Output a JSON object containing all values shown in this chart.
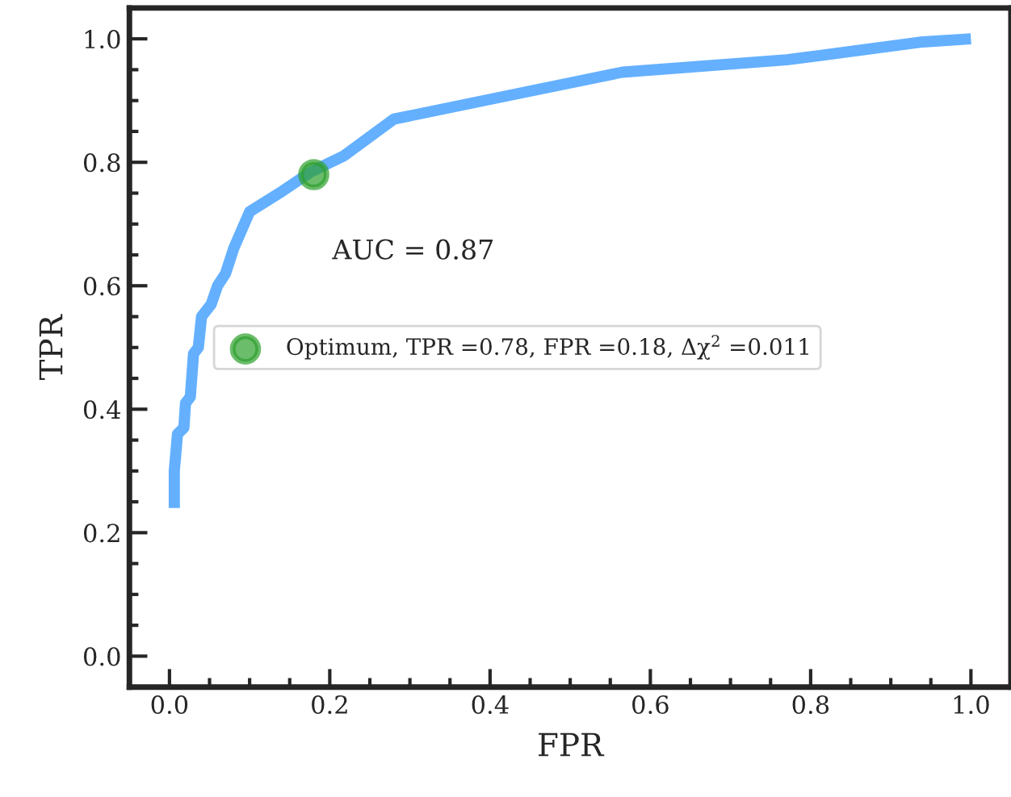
{
  "chart_data": {
    "type": "line",
    "xlabel": "FPR",
    "ylabel": "TPR",
    "xlim": [
      -0.05,
      1.05
    ],
    "ylim": [
      -0.05,
      1.05
    ],
    "xticks": [
      {
        "value": 0,
        "label": "0.0"
      },
      0.2,
      0.4,
      0.6,
      0.8,
      {
        "value": 1,
        "label": "1.0"
      }
    ],
    "yticks": [
      {
        "value": 0,
        "label": "0.0"
      },
      0.2,
      0.4,
      0.6,
      0.8,
      {
        "value": 1,
        "label": "1.0"
      }
    ],
    "grid": false,
    "legend": "center",
    "annotations": [
      "AUC = 0.87"
    ],
    "series": [
      {
        "color": "#64b0ff",
        "marker": "none",
        "line_style": "solid",
        "x": [
          0.006,
          0.006,
          0.01,
          0.018,
          0.02,
          0.026,
          0.03,
          0.036,
          0.04,
          0.052,
          0.06,
          0.07,
          0.08,
          0.1,
          0.137,
          0.177,
          0.217,
          0.28,
          0.43,
          0.565,
          0.77,
          0.94,
          1.0
        ],
        "values": [
          0.24,
          0.3,
          0.36,
          0.37,
          0.41,
          0.42,
          0.49,
          0.5,
          0.55,
          0.57,
          0.6,
          0.62,
          0.66,
          0.72,
          0.75,
          0.785,
          0.81,
          0.87,
          0.91,
          0.946,
          0.966,
          0.995,
          1.0
        ]
      },
      {
        "type": "scatter",
        "name": "Optimum, TPR =0.78, FPR =0.18, Δχ$^{2}$ =0.011",
        "color": "#2ca02c",
        "marker": "circle",
        "x": [
          0.18
        ],
        "values": [
          0.78
        ]
      }
    ]
  }
}
